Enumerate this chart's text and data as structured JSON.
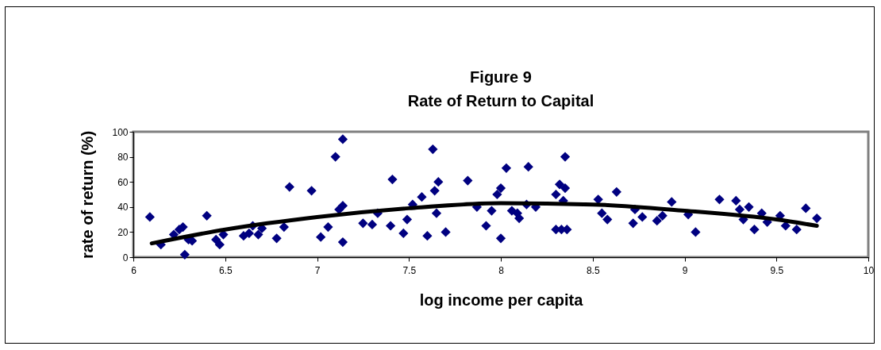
{
  "chart_data": {
    "type": "scatter",
    "title": "Figure 9",
    "subtitle": "Rate of Return to Capital",
    "xlabel": "log income per capita",
    "ylabel": "rate of return (%)",
    "xlim": [
      6,
      10
    ],
    "xticks": [
      6,
      6.5,
      7,
      7.5,
      8,
      8.5,
      9,
      9.5,
      10
    ],
    "ylim": [
      0,
      100
    ],
    "yticks": [
      0,
      20,
      40,
      60,
      80,
      100
    ],
    "grid": false,
    "series": [
      {
        "marker": "diamond",
        "color": "#000080",
        "x": [
          6.09,
          6.15,
          6.22,
          6.25,
          6.27,
          6.28,
          6.3,
          6.32,
          6.4,
          6.45,
          6.47,
          6.49,
          6.6,
          6.63,
          6.65,
          6.68,
          6.7,
          6.78,
          6.82,
          6.85,
          6.97,
          7.02,
          7.06,
          7.1,
          7.12,
          7.14,
          7.14,
          7.14,
          7.25,
          7.3,
          7.33,
          7.4,
          7.41,
          7.47,
          7.49,
          7.52,
          7.57,
          7.6,
          7.63,
          7.64,
          7.65,
          7.66,
          7.7,
          7.82,
          7.87,
          7.92,
          7.95,
          7.98,
          8.0,
          8.0,
          8.03,
          8.06,
          8.09,
          8.1,
          8.14,
          8.15,
          8.19,
          8.3,
          8.3,
          8.32,
          8.33,
          8.34,
          8.35,
          8.35,
          8.36,
          8.53,
          8.55,
          8.58,
          8.63,
          8.72,
          8.73,
          8.77,
          8.85,
          8.88,
          8.93,
          9.02,
          9.06,
          9.19,
          9.28,
          9.3,
          9.32,
          9.35,
          9.38,
          9.42,
          9.45,
          9.52,
          9.55,
          9.61,
          9.66,
          9.72
        ],
        "values": [
          32,
          10,
          18,
          22,
          24,
          2,
          14,
          13,
          33,
          14,
          10,
          18,
          17,
          19,
          25,
          18,
          23,
          15,
          24,
          56,
          53,
          16,
          24,
          80,
          38,
          94,
          41,
          12,
          27,
          26,
          35,
          25,
          62,
          19,
          30,
          42,
          48,
          17,
          86,
          53,
          35,
          60,
          20,
          61,
          40,
          25,
          37,
          50,
          55,
          15,
          71,
          37,
          35,
          31,
          42,
          72,
          40,
          22,
          50,
          58,
          22,
          45,
          55,
          80,
          22,
          46,
          35,
          30,
          52,
          27,
          38,
          32,
          29,
          33,
          44,
          34,
          20,
          46,
          45,
          38,
          30,
          40,
          22,
          35,
          28,
          33,
          25,
          22,
          39,
          31
        ]
      },
      {
        "type": "line",
        "color": "#000000",
        "x": [
          6.1,
          6.5,
          7,
          7.5,
          8,
          8.5,
          9,
          9.5,
          9.72
        ],
        "values": [
          11,
          22,
          32,
          39,
          43,
          42,
          37,
          30,
          25
        ]
      }
    ]
  }
}
